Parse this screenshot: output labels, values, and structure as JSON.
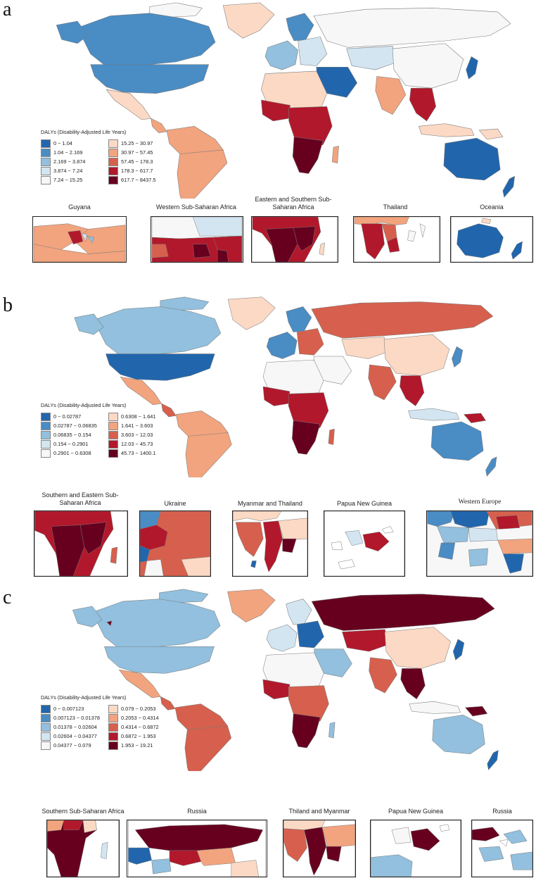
{
  "panels": [
    {
      "letter": "a",
      "legend": {
        "title": "DALYs (Disability-Adjusted Life Years)",
        "bins": [
          {
            "label": "0 ~ 1.04",
            "color": "#2166ac"
          },
          {
            "label": "1.04 ~ 2.169",
            "color": "#4a8cc4"
          },
          {
            "label": "2.169 ~ 3.874",
            "color": "#92c0de"
          },
          {
            "label": "3.874 ~ 7.24",
            "color": "#d3e5f1"
          },
          {
            "label": "7.24 ~ 15.25",
            "color": "#f7f7f7"
          },
          {
            "label": "15.25 ~ 30.97",
            "color": "#fbd9c4"
          },
          {
            "label": "30.97 ~ 57.45",
            "color": "#f2a47e"
          },
          {
            "label": "57.45 ~ 178.3",
            "color": "#d6604d"
          },
          {
            "label": "178.3 ~ 617.7",
            "color": "#b2182b"
          },
          {
            "label": "617.7 ~ 8437.5",
            "color": "#67001f"
          }
        ]
      },
      "insets": [
        {
          "title": "Guyana"
        },
        {
          "title": "Western Sub-Saharan Africa"
        },
        {
          "title": "Eastern and Southern Sub-Saharan Africa"
        },
        {
          "title": "Thailand"
        },
        {
          "title": "Oceania"
        }
      ]
    },
    {
      "letter": "b",
      "legend": {
        "title": "DALYs (Disability-Adjusted Life Years)",
        "bins": [
          {
            "label": "0 ~ 0.02787",
            "color": "#2166ac"
          },
          {
            "label": "0.02787 ~ 0.06835",
            "color": "#4a8cc4"
          },
          {
            "label": "0.06835 ~ 0.154",
            "color": "#92c0de"
          },
          {
            "label": "0.154 ~ 0.2901",
            "color": "#d3e5f1"
          },
          {
            "label": "0.2901 ~ 0.6308",
            "color": "#f7f7f7"
          },
          {
            "label": "0.6308 ~ 1.641",
            "color": "#fbd9c4"
          },
          {
            "label": "1.641 ~ 3.603",
            "color": "#f2a47e"
          },
          {
            "label": "3.603 ~ 12.03",
            "color": "#d6604d"
          },
          {
            "label": "12.03 ~ 45.73",
            "color": "#b2182b"
          },
          {
            "label": "45.73 ~ 1400.1",
            "color": "#67001f"
          }
        ]
      },
      "insets": [
        {
          "title": "Southern and Eastern Sub-Saharan Africa"
        },
        {
          "title": "Ukraine"
        },
        {
          "title": "Myanmar and Thailand"
        },
        {
          "title": "Papua New Guinea"
        },
        {
          "title": "Western Europe"
        }
      ]
    },
    {
      "letter": "c",
      "legend": {
        "title": "DALYs (Disability-Adjusted Life Years)",
        "bins": [
          {
            "label": "0 ~ 0.007123",
            "color": "#2166ac"
          },
          {
            "label": "0.007123 ~ 0.01378",
            "color": "#4a8cc4"
          },
          {
            "label": "0.01378 ~ 0.02604",
            "color": "#92c0de"
          },
          {
            "label": "0.02604 ~ 0.04377",
            "color": "#d3e5f1"
          },
          {
            "label": "0.04377 ~ 0.079",
            "color": "#f7f7f7"
          },
          {
            "label": "0.079 ~ 0.2053",
            "color": "#fbd9c4"
          },
          {
            "label": "0.2053 ~ 0.4314",
            "color": "#f2a47e"
          },
          {
            "label": "0.4314 ~ 0.6872",
            "color": "#d6604d"
          },
          {
            "label": "0.6872 ~ 1.953",
            "color": "#b2182b"
          },
          {
            "label": "1.953 ~ 19.21",
            "color": "#67001f"
          }
        ]
      },
      "insets": [
        {
          "title": "Southern Sub-Saharan Africa"
        },
        {
          "title": "Russia"
        },
        {
          "title": "Thiland and Myanmar"
        },
        {
          "title": "Papua New Guinea"
        },
        {
          "title": "Russia"
        }
      ]
    }
  ]
}
